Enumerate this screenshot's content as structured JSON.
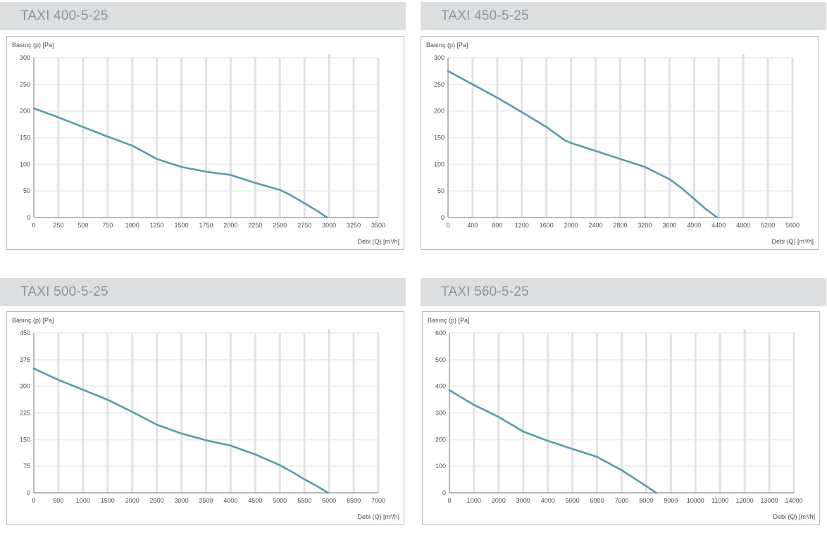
{
  "chart_data": [
    {
      "type": "line",
      "title": "TAXI 400-5-25",
      "ylabel": "Basınç (p) [Pa]",
      "xlabel": "Debi (Q) [m³/h]",
      "xlim": [
        0,
        3500
      ],
      "ylim": [
        0,
        300
      ],
      "xticks": [
        0,
        250,
        500,
        750,
        1000,
        1250,
        1500,
        1750,
        2000,
        2250,
        2500,
        2750,
        3000,
        3250,
        3500
      ],
      "yticks": [
        0,
        50,
        100,
        150,
        200,
        250,
        300
      ],
      "grid": true,
      "series": [
        {
          "color": "#5b9aa8",
          "x": [
            0,
            250,
            500,
            750,
            1000,
            1100,
            1250,
            1500,
            1750,
            2000,
            2250,
            2500,
            2600,
            2750,
            2900,
            2980
          ],
          "y": [
            205,
            188,
            170,
            152,
            135,
            125,
            110,
            95,
            86,
            80,
            65,
            52,
            43,
            27,
            10,
            0
          ]
        }
      ]
    },
    {
      "type": "line",
      "title": "TAXI 450-5-25",
      "ylabel": "Basınç (p) [Pa]",
      "xlabel": "Debi (Q) [m³/h]",
      "xlim": [
        0,
        5600
      ],
      "ylim": [
        0,
        300
      ],
      "xticks": [
        0,
        400,
        800,
        1200,
        1600,
        2000,
        2400,
        2800,
        3200,
        3600,
        4000,
        4400,
        4800,
        5200,
        5600
      ],
      "yticks": [
        0,
        50,
        100,
        150,
        200,
        250,
        300
      ],
      "grid": true,
      "series": [
        {
          "color": "#5b9aa8",
          "x": [
            0,
            400,
            800,
            1200,
            1600,
            1900,
            2000,
            2400,
            2800,
            3200,
            3600,
            3800,
            4000,
            4200,
            4380
          ],
          "y": [
            275,
            250,
            225,
            198,
            170,
            145,
            140,
            125,
            110,
            95,
            72,
            55,
            35,
            15,
            0
          ]
        }
      ]
    },
    {
      "type": "line",
      "title": "TAXI 500-5-25",
      "ylabel": "Basınç (p) [Pa]",
      "xlabel": "Debi (Q) [m³/h]",
      "xlim": [
        0,
        7000
      ],
      "ylim": [
        0,
        450
      ],
      "xticks": [
        0,
        500,
        1000,
        1500,
        2000,
        2500,
        3000,
        3500,
        4000,
        4500,
        5000,
        5500,
        6000,
        6500,
        7000
      ],
      "yticks": [
        0,
        75,
        150,
        225,
        300,
        375,
        450
      ],
      "grid": true,
      "series": [
        {
          "color": "#5b9aa8",
          "x": [
            0,
            500,
            1000,
            1500,
            2000,
            2500,
            3000,
            3500,
            4000,
            4500,
            5000,
            5300,
            5500,
            5800,
            5980
          ],
          "y": [
            350,
            318,
            290,
            262,
            228,
            192,
            167,
            148,
            133,
            108,
            78,
            55,
            38,
            15,
            0
          ]
        }
      ]
    },
    {
      "type": "line",
      "title": "TAXI 560-5-25",
      "ylabel": "Basınç (p) [Pa]",
      "xlabel": "Debi (Q) [m³/h]",
      "xlim": [
        0,
        14000
      ],
      "ylim": [
        0,
        600
      ],
      "xticks": [
        0,
        1000,
        2000,
        3000,
        4000,
        5000,
        6000,
        7000,
        8000,
        9000,
        10000,
        11000,
        12000,
        13000,
        14000
      ],
      "yticks": [
        0,
        100,
        200,
        300,
        400,
        500,
        600
      ],
      "grid": true,
      "series": [
        {
          "color": "#5b9aa8",
          "x": [
            0,
            1000,
            2000,
            3000,
            4000,
            5000,
            6000,
            6500,
            7000,
            7500,
            8000,
            8400
          ],
          "y": [
            385,
            330,
            285,
            230,
            195,
            165,
            135,
            110,
            85,
            55,
            25,
            0
          ]
        }
      ]
    }
  ]
}
